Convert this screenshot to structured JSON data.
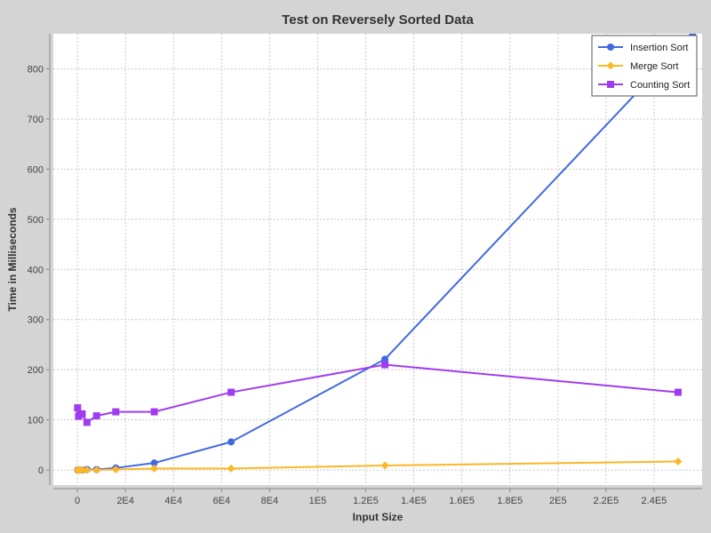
{
  "chart_data": {
    "type": "line",
    "title": "Test on Reversely Sorted Data",
    "xlabel": "Input Size",
    "ylabel": "Time in Milliseconds",
    "xlim": [
      -10000,
      260000
    ],
    "ylim": [
      -30,
      870
    ],
    "x_ticks": [
      0,
      20000,
      40000,
      60000,
      80000,
      100000,
      120000,
      140000,
      160000,
      180000,
      200000,
      220000,
      240000
    ],
    "x_tick_labels": [
      "0",
      "2E4",
      "4E4",
      "6E4",
      "8E4",
      "1E5",
      "1.2E5",
      "1.4E5",
      "1.6E5",
      "1.8E5",
      "2E5",
      "2.2E5",
      "2.4E5"
    ],
    "y_ticks": [
      0,
      100,
      200,
      300,
      400,
      500,
      600,
      700,
      800
    ],
    "y_tick_labels": [
      "0",
      "100",
      "200",
      "300",
      "400",
      "500",
      "600",
      "700",
      "800"
    ],
    "grid": true,
    "legend_position": "top-right",
    "series": [
      {
        "name": "Insertion Sort",
        "color": "#4169e1",
        "marker": "circle",
        "x": [
          100,
          200,
          500,
          1000,
          2000,
          4000,
          8000,
          16000,
          32000,
          64000,
          128000,
          256000
        ],
        "y": [
          0,
          0,
          0,
          0,
          0,
          1,
          1,
          4,
          14,
          56,
          221,
          870
        ]
      },
      {
        "name": "Merge Sort",
        "color": "#fbb726",
        "marker": "diamond",
        "x": [
          100,
          200,
          500,
          1000,
          2000,
          4000,
          8000,
          16000,
          32000,
          64000,
          128000,
          250000
        ],
        "y": [
          0,
          0,
          0,
          0,
          0,
          0,
          0,
          1,
          3,
          3,
          9,
          17
        ]
      },
      {
        "name": "Counting Sort",
        "color": "#a03cf0",
        "marker": "square",
        "x": [
          100,
          500,
          1000,
          2000,
          4000,
          8000,
          16000,
          32000,
          64000,
          128000,
          250000
        ],
        "y": [
          124,
          107,
          111,
          112,
          95,
          108,
          116,
          116,
          155,
          210,
          155
        ]
      }
    ]
  }
}
